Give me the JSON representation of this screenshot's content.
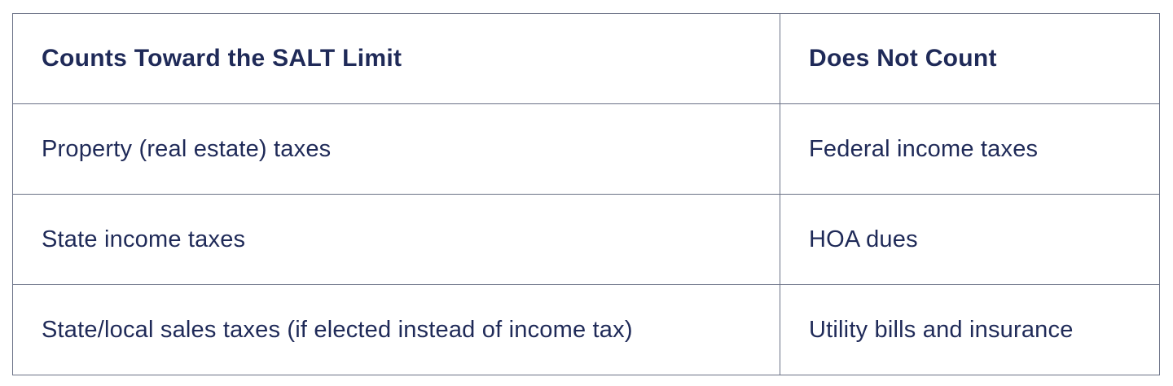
{
  "table": {
    "headers": [
      "Counts Toward the SALT Limit",
      "Does Not Count"
    ],
    "rows": [
      [
        "Property (real estate) taxes",
        "Federal income taxes"
      ],
      [
        "State income taxes",
        "HOA dues"
      ],
      [
        "State/local sales taxes (if elected instead of income tax)",
        "Utility bills and insurance"
      ]
    ],
    "colors": {
      "text": "#1f2a58",
      "border": "#6a7186",
      "background": "#ffffff"
    }
  }
}
